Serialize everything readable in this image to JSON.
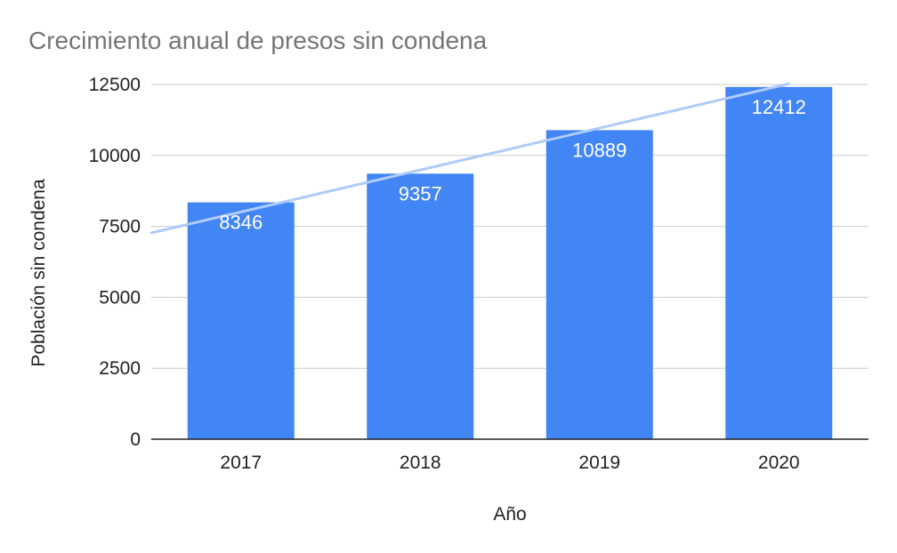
{
  "chart_data": {
    "type": "bar",
    "title": "Crecimiento anual de presos sin condena",
    "xlabel": "Año",
    "ylabel": "Población sin condena",
    "categories": [
      "2017",
      "2018",
      "2019",
      "2020"
    ],
    "values": [
      8346,
      9357,
      10889,
      12412
    ],
    "value_labels": [
      "8346",
      "9357",
      "10889",
      "12412"
    ],
    "ylim": [
      0,
      12500
    ],
    "yticks": [
      0,
      2500,
      5000,
      7500,
      10000,
      12500
    ],
    "ytick_labels": [
      "0",
      "2500",
      "5000",
      "7500",
      "10000",
      "12500"
    ],
    "grid": true,
    "legend": "none",
    "trendline": {
      "type": "linear",
      "start_value": 7270,
      "end_value": 12520
    },
    "colors": {
      "bar": "#4285f4",
      "trendline": "#aecbfa",
      "grid": "#cccccc",
      "baseline": "#222222",
      "title": "#757575",
      "text": "#222222",
      "data_label": "#ffffff"
    }
  }
}
